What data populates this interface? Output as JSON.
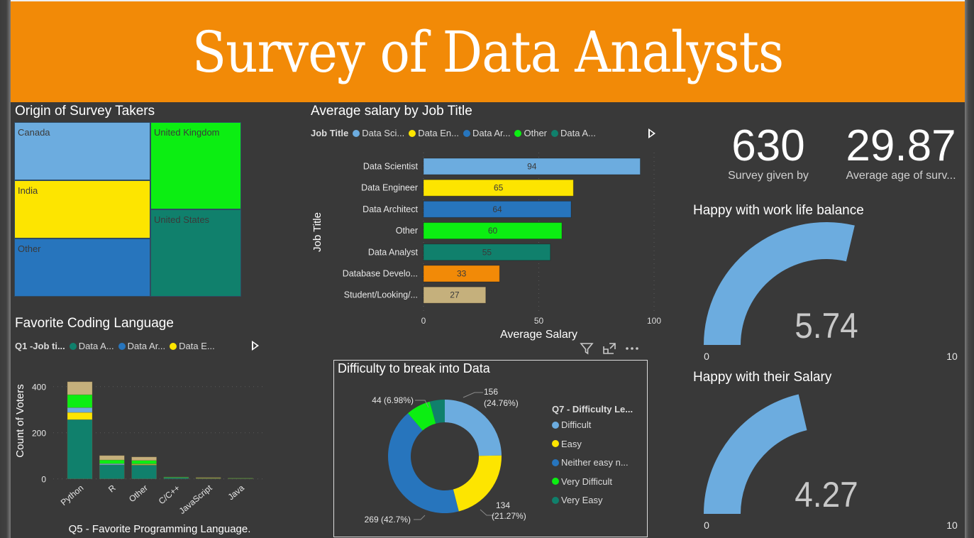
{
  "page": {
    "title": "Survey of Data Analysts"
  },
  "treemap": {
    "title": "Origin of Survey Takers",
    "cells": [
      {
        "label": "Canada",
        "color": "#6cacdf"
      },
      {
        "label": "India",
        "color": "#fde500"
      },
      {
        "label": "Other",
        "color": "#2775bd"
      },
      {
        "label": "United Kingdom",
        "color": "#0cee12"
      },
      {
        "label": "United States",
        "color": "#10806c"
      }
    ]
  },
  "salary_chart": {
    "title": "Average salary by Job Title",
    "legend_title": "Job Title",
    "legend_items": [
      {
        "label": "Data Sci...",
        "color": "#6cacdf"
      },
      {
        "label": "Data En...",
        "color": "#fde500"
      },
      {
        "label": "Data Ar...",
        "color": "#2775bd"
      },
      {
        "label": "Other",
        "color": "#0cee12"
      },
      {
        "label": "Data A...",
        "color": "#10806c"
      }
    ],
    "xlabel": "Average Salary",
    "ylabel": "Job Title",
    "x_ticks": [
      "0",
      "50",
      "100"
    ]
  },
  "coding_chart": {
    "title": "Favorite Coding Language",
    "legend_title": "Q1 -Job ti...",
    "legend_items": [
      {
        "label": "Data A...",
        "color": "#10806c"
      },
      {
        "label": "Data Ar...",
        "color": "#2775bd"
      },
      {
        "label": "Data E...",
        "color": "#fde500"
      }
    ],
    "xlabel": "Q5 - Favorite Programming Language.",
    "ylabel": "Count of Voters",
    "y_ticks": [
      "0",
      "200",
      "400"
    ]
  },
  "donut_chart": {
    "title": "Difficulty to break into Data",
    "legend_title": "Q7 - Difficulty Le...",
    "legend_items": [
      {
        "label": "Difficult",
        "color": "#6cacdf"
      },
      {
        "label": "Easy",
        "color": "#fde500"
      },
      {
        "label": "Neither easy n...",
        "color": "#2775bd"
      },
      {
        "label": "Very Difficult",
        "color": "#0cee12"
      },
      {
        "label": "Very Easy",
        "color": "#10806c"
      }
    ],
    "labels": {
      "difficult_a": "156",
      "difficult_b": "(24.76%)",
      "easy_a": "134",
      "easy_b": "(21.27%)",
      "neither": "269 (42.7%)",
      "very_difficult": "44 (6.98%)"
    }
  },
  "kpis": [
    {
      "value": "630",
      "label": "Survey given by"
    },
    {
      "value": "29.87",
      "label": "Average age of surv..."
    }
  ],
  "gauges": [
    {
      "title": "Happy with work life balance",
      "value_text": "5.74",
      "min": "0",
      "max": "10"
    },
    {
      "title": "Happy with their Salary",
      "value_text": "4.27",
      "min": "0",
      "max": "10"
    }
  ],
  "chart_data": [
    {
      "type": "treemap",
      "title": "Origin of Survey Takers",
      "categories": [
        "Canada",
        "India",
        "Other",
        "United Kingdom",
        "United States"
      ],
      "values": [
        1,
        1,
        1,
        1.5,
        1.6
      ]
    },
    {
      "type": "bar",
      "orientation": "horizontal",
      "title": "Average salary by Job Title",
      "categories": [
        "Data Scientist",
        "Data Engineer",
        "Data Architect",
        "Other",
        "Data Analyst",
        "Database Develo...",
        "Student/Looking/..."
      ],
      "values": [
        94,
        65,
        64,
        60,
        55,
        33,
        27
      ],
      "colors": [
        "#6cacdf",
        "#fde500",
        "#2775bd",
        "#0cee12",
        "#10806c",
        "#f28a07",
        "#c5b07c"
      ],
      "xlabel": "Average Salary",
      "ylabel": "Job Title",
      "xlim": [
        0,
        100
      ],
      "x_ticks": [
        0,
        50,
        100
      ],
      "grid": true
    },
    {
      "type": "bar",
      "stacked": true,
      "title": "Favorite Coding Language",
      "categories": [
        "Python",
        "R",
        "Other",
        "C/C++",
        "JavaScript",
        "Java"
      ],
      "series": [
        {
          "name": "Data Analyst",
          "color": "#10806c",
          "values": [
            257,
            61,
            60,
            6,
            2,
            2
          ]
        },
        {
          "name": "Data Engineer",
          "color": "#fde500",
          "values": [
            31,
            0,
            3,
            0,
            1,
            0
          ]
        },
        {
          "name": "Data Scientist",
          "color": "#6cacdf",
          "values": [
            21,
            5,
            2,
            0,
            0,
            0
          ]
        },
        {
          "name": "Other",
          "color": "#0cee12",
          "values": [
            56,
            16,
            15,
            2,
            1,
            1
          ]
        },
        {
          "name": "Student/Looking/None",
          "color": "#c5b07c",
          "values": [
            56,
            19,
            15,
            0,
            2,
            0
          ]
        }
      ],
      "xlabel": "Q5 - Favorite Programming Language.",
      "ylabel": "Count of Voters",
      "ylim": [
        0,
        430
      ],
      "y_ticks": [
        0,
        200,
        400
      ],
      "grid": true,
      "legend": "top-left"
    },
    {
      "type": "pie",
      "donut": true,
      "title": "Difficulty to break into Data",
      "categories": [
        "Difficult",
        "Easy",
        "Neither easy nor difficult",
        "Very Difficult",
        "Very Easy"
      ],
      "values": [
        156,
        134,
        269,
        44,
        27
      ],
      "percents": [
        24.76,
        21.27,
        42.7,
        6.98,
        4.29
      ],
      "colors": [
        "#6cacdf",
        "#fde500",
        "#2775bd",
        "#0cee12",
        "#10806c"
      ],
      "legend": "right"
    },
    {
      "type": "gauge",
      "title": "Happy with work life balance",
      "value": 5.74,
      "min": 0,
      "max": 10
    },
    {
      "type": "gauge",
      "title": "Happy with their Salary",
      "value": 4.27,
      "min": 0,
      "max": 10
    }
  ]
}
